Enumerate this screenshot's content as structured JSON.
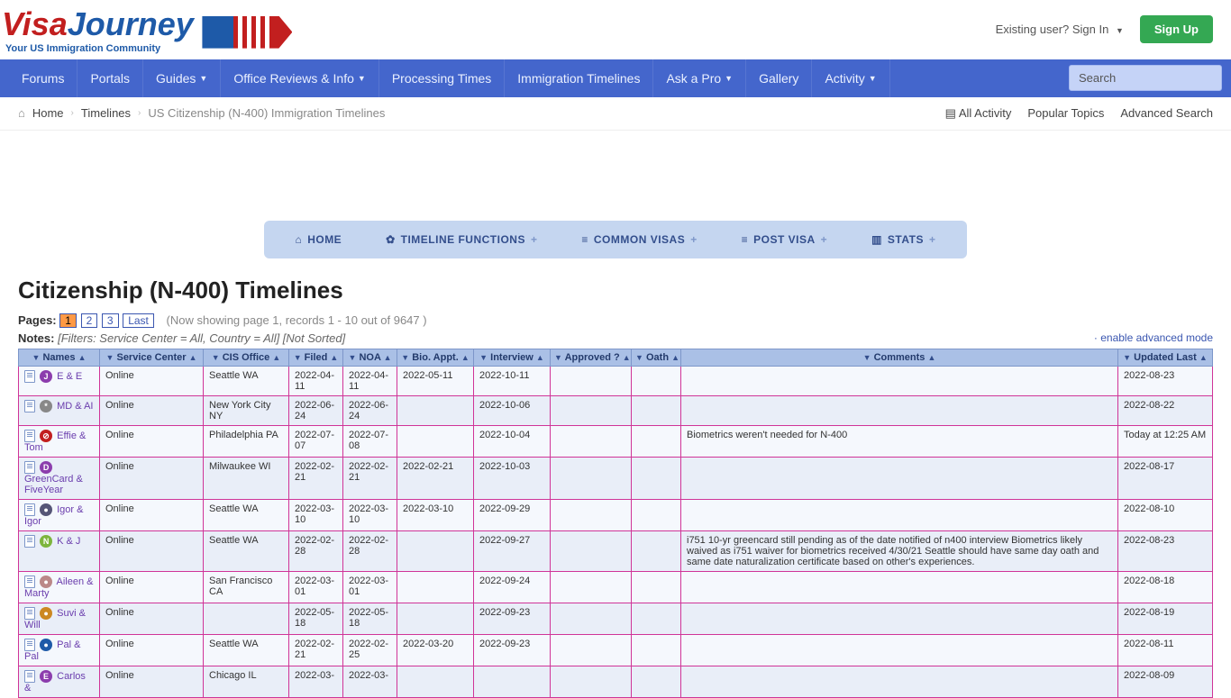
{
  "top": {
    "logo_visa": "Visa",
    "logo_journey": "Journey",
    "logo_tag": "Your US Immigration Community",
    "sign_in": "Existing user? Sign In",
    "sign_up": "Sign Up"
  },
  "nav": {
    "items": [
      "Forums",
      "Portals",
      "Guides",
      "Office Reviews & Info",
      "Processing Times",
      "Immigration Timelines",
      "Ask a Pro",
      "Gallery",
      "Activity"
    ],
    "has_caret": [
      false,
      false,
      true,
      true,
      false,
      false,
      true,
      false,
      true
    ],
    "search_placeholder": "Search"
  },
  "crumbs": {
    "home": "Home",
    "timelines": "Timelines",
    "current": "US Citizenship (N-400) Immigration Timelines",
    "all_activity": "All Activity",
    "popular": "Popular Topics",
    "advanced": "Advanced Search"
  },
  "toolbar": {
    "home": "HOME",
    "funcs": "TIMELINE FUNCTIONS",
    "common": "COMMON VISAS",
    "post": "POST VISA",
    "stats": "STATS"
  },
  "heading": "Citizenship (N-400) Timelines",
  "pages": {
    "label": "Pages:",
    "nums": [
      "1",
      "2",
      "3"
    ],
    "last": "Last",
    "info": "(Now showing page 1, records 1 - 10 out of 9647 )"
  },
  "notes": {
    "label": "Notes:",
    "filters": "[Filters: Service Center = All, Country = All] [Not Sorted]",
    "adv": "· enable advanced mode"
  },
  "table": {
    "cols": [
      "Names",
      "Service Center",
      "CIS Office",
      "Filed",
      "NOA",
      "Bio. Appt.",
      "Interview",
      "Approved ?",
      "Oath",
      "Comments",
      "Updated Last"
    ],
    "rows": [
      {
        "name": "E & E",
        "av": "J",
        "avc": "#8c3dad",
        "sc": "Online",
        "cis": "Seattle WA",
        "filed": "2022-04-11",
        "noa": "2022-04-11",
        "bio": "2022-05-11",
        "int": "2022-10-11",
        "app": "",
        "oath": "",
        "com": "",
        "upd": "2022-08-23"
      },
      {
        "name": "MD & AI",
        "av": "*",
        "avc": "#888",
        "sc": "Online",
        "cis": "New York City NY",
        "filed": "2022-06-24",
        "noa": "2022-06-24",
        "bio": "",
        "int": "2022-10-06",
        "app": "",
        "oath": "",
        "com": "",
        "upd": "2022-08-22"
      },
      {
        "name": "Effie & Tom",
        "av": "⊘",
        "avc": "#c21f1f",
        "sc": "Online",
        "cis": "Philadelphia PA",
        "filed": "2022-07-07",
        "noa": "2022-07-08",
        "bio": "",
        "int": "2022-10-04",
        "app": "",
        "oath": "",
        "com": "Biometrics weren't needed for N-400",
        "upd": "Today at 12:25 AM"
      },
      {
        "name": "GreenCard & FiveYear",
        "av": "D",
        "avc": "#8c3dad",
        "sc": "Online",
        "cis": "Milwaukee WI",
        "filed": "2022-02-21",
        "noa": "2022-02-21",
        "bio": "2022-02-21",
        "int": "2022-10-03",
        "app": "",
        "oath": "",
        "com": "",
        "upd": "2022-08-17"
      },
      {
        "name": "Igor & Igor",
        "av": "●",
        "avc": "#557",
        "sc": "Online",
        "cis": "Seattle WA",
        "filed": "2022-03-10",
        "noa": "2022-03-10",
        "bio": "2022-03-10",
        "int": "2022-09-29",
        "app": "",
        "oath": "",
        "com": "",
        "upd": "2022-08-10"
      },
      {
        "name": "K & J",
        "av": "N",
        "avc": "#7db53d",
        "sc": "Online",
        "cis": "Seattle WA",
        "filed": "2022-02-28",
        "noa": "2022-02-28",
        "bio": "",
        "int": "2022-09-27",
        "app": "",
        "oath": "",
        "com": "i751 10-yr greencard still pending as of the date notified of n400 interview Biometrics likely waived as i751 waiver for biometrics received 4/30/21 Seattle should have same day oath and same date naturalization certificate based on other's experiences.",
        "upd": "2022-08-23"
      },
      {
        "name": "Aileen & Marty",
        "av": "●",
        "avc": "#b88",
        "sc": "Online",
        "cis": "San Francisco CA",
        "filed": "2022-03-01",
        "noa": "2022-03-01",
        "bio": "",
        "int": "2022-09-24",
        "app": "",
        "oath": "",
        "com": "",
        "upd": "2022-08-18"
      },
      {
        "name": "Suvi & Will",
        "av": "●",
        "avc": "#cc8822",
        "sc": "Online",
        "cis": "",
        "filed": "2022-05-18",
        "noa": "2022-05-18",
        "bio": "",
        "int": "2022-09-23",
        "app": "",
        "oath": "",
        "com": "",
        "upd": "2022-08-19"
      },
      {
        "name": "Pal & Pal",
        "av": "●",
        "avc": "#1e5aa8",
        "sc": "Online",
        "cis": "Seattle WA",
        "filed": "2022-02-21",
        "noa": "2022-02-25",
        "bio": "2022-03-20",
        "int": "2022-09-23",
        "app": "",
        "oath": "",
        "com": "",
        "upd": "2022-08-11"
      },
      {
        "name": "Carlos &",
        "av": "E",
        "avc": "#8c3dad",
        "sc": "Online",
        "cis": "Chicago IL",
        "filed": "2022-03-",
        "noa": "2022-03-",
        "bio": "",
        "int": "",
        "app": "",
        "oath": "",
        "com": "",
        "upd": "2022-08-09"
      }
    ]
  }
}
